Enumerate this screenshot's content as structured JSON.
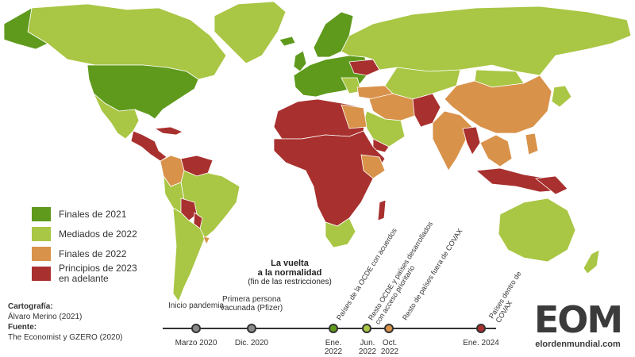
{
  "legend": [
    {
      "label": "Finales de 2021",
      "color": "#5f9a1d"
    },
    {
      "label": "Mediados de 2022",
      "color": "#a9c644"
    },
    {
      "label": "Finales de 2022",
      "color": "#d9924a"
    },
    {
      "label": "Principios de 2023 en adelante",
      "color": "#a8302e"
    }
  ],
  "colors": {
    "ocean": "#ffffff",
    "border": "#ffffff",
    "timeline": "#333333"
  },
  "timeline": {
    "title_line1": "La vuelta",
    "title_line2": "a la normalidad",
    "subtitle": "(fin de las restricciones)",
    "events": [
      {
        "date": "Marzo 2020",
        "label_above": "Inicio pandemia"
      },
      {
        "date": "Dic. 2020",
        "label_above": "Primera persona vacunada (Pfizer)"
      },
      {
        "date": "Ene. 2022",
        "label_diag": "Países de la OCDE con acuerdos"
      },
      {
        "date": "Jun. 2022",
        "label_diag": "Resto OCDE y países desarrollados con acceso prioritario"
      },
      {
        "date": "Oct. 2022",
        "label_diag": "Resto de países fuera de COVAX"
      },
      {
        "date": "Ene. 2024",
        "label_diag": "Países dentro de COVAX"
      }
    ]
  },
  "credits": {
    "cartography_label": "Cartografía:",
    "cartography_value": "Álvaro Merino (2021)",
    "source_label": "Fuente:",
    "source_value": "The Economist y GZERO (2020)"
  },
  "logo": {
    "mark": "EOM",
    "site": "elordenmundial.com"
  }
}
